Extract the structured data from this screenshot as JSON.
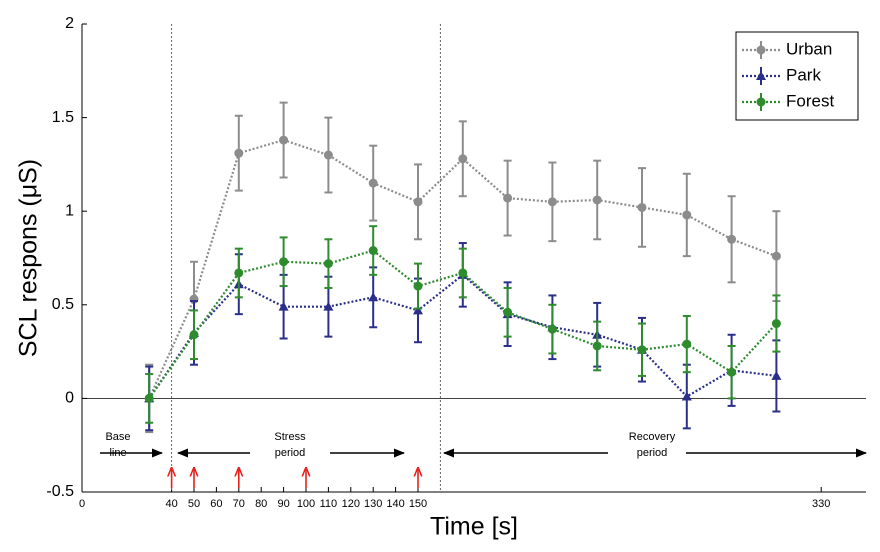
{
  "chart_data": {
    "type": "line",
    "xlabel": "Time [s]",
    "ylabel": "SCL respons (μS)",
    "x": [
      30,
      50,
      70,
      90,
      110,
      130,
      150,
      170,
      190,
      210,
      230,
      250,
      270,
      290,
      310
    ],
    "series": [
      {
        "name": "Urban",
        "color": "#8c8c8c",
        "marker": "circle",
        "values": [
          0,
          0.53,
          1.31,
          1.38,
          1.3,
          1.15,
          1.05,
          1.28,
          1.07,
          1.05,
          1.06,
          1.02,
          0.98,
          0.85,
          0.76
        ],
        "errors": [
          0.18,
          0.2,
          0.2,
          0.2,
          0.2,
          0.2,
          0.2,
          0.2,
          0.2,
          0.21,
          0.21,
          0.21,
          0.22,
          0.23,
          0.24
        ]
      },
      {
        "name": "Park",
        "color": "#2b2f8c",
        "marker": "triangle",
        "values": [
          0,
          0.35,
          0.61,
          0.49,
          0.49,
          0.54,
          0.47,
          0.66,
          0.45,
          0.38,
          0.34,
          0.26,
          0.01,
          0.15,
          0.12
        ],
        "errors": [
          0.17,
          0.17,
          0.16,
          0.17,
          0.16,
          0.16,
          0.17,
          0.17,
          0.17,
          0.17,
          0.17,
          0.17,
          0.17,
          0.19,
          0.19
        ]
      },
      {
        "name": "Forest",
        "color": "#2e8b2e",
        "marker": "circle",
        "values": [
          0,
          0.34,
          0.67,
          0.73,
          0.72,
          0.79,
          0.6,
          0.67,
          0.46,
          0.37,
          0.28,
          0.26,
          0.29,
          0.14,
          0.4
        ],
        "errors": [
          0.13,
          0.13,
          0.13,
          0.13,
          0.13,
          0.13,
          0.12,
          0.13,
          0.13,
          0.13,
          0.13,
          0.14,
          0.15,
          0.14,
          0.15
        ]
      }
    ],
    "xlim": [
      0,
      350
    ],
    "ylim": [
      -0.5,
      2
    ],
    "xticks": [
      0,
      40,
      50,
      60,
      70,
      80,
      90,
      100,
      110,
      120,
      130,
      140,
      150,
      330
    ],
    "yticks": [
      -0.5,
      0,
      0.5,
      1,
      1.5,
      2
    ],
    "legend": "upper right",
    "phase_lines": [
      40,
      160
    ],
    "stimulus_times": [
      40,
      50,
      70,
      100,
      150
    ],
    "stimulus_color": "#e8201c",
    "annotations": [
      {
        "lines": [
          "Base",
          "line"
        ]
      },
      {
        "lines": [
          "Stress",
          "period"
        ]
      },
      {
        "lines": [
          "Recovery",
          "period"
        ]
      }
    ]
  }
}
